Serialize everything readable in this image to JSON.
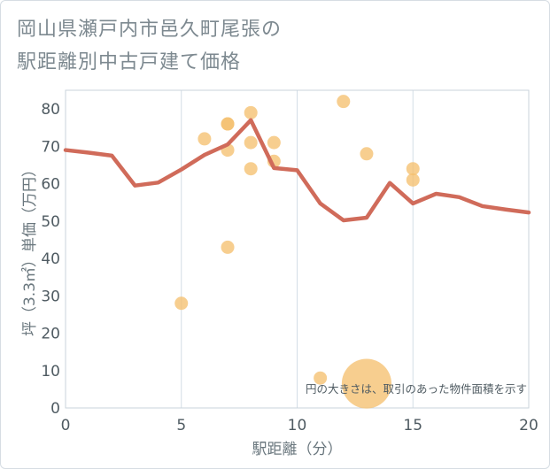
{
  "title_lines": [
    "岡山県瀬戸内市邑久町尾張の",
    "駅距離別中古戸建て価格"
  ],
  "chart_data": {
    "type": "scatter",
    "xlabel": "駅距離（分）",
    "ylabel": "坪（3.3㎡）単価（万円）",
    "xlim": [
      0,
      20
    ],
    "ylim": [
      0,
      85
    ],
    "xticks": [
      0,
      5,
      10,
      15,
      20
    ],
    "yticks": [
      0,
      10,
      20,
      30,
      40,
      50,
      60,
      70,
      80
    ],
    "grid": true,
    "note": "円の大きさは、取引のあった物件面積を示す",
    "colors": {
      "bubble": "#f5c06f",
      "line": "#d06b5a",
      "grid": "#d3dde6",
      "frame": "#c9d3db"
    },
    "scatter": [
      {
        "x": 5,
        "y": 28,
        "size": 1
      },
      {
        "x": 6,
        "y": 72,
        "size": 1
      },
      {
        "x": 7,
        "y": 76,
        "size": 1
      },
      {
        "x": 7,
        "y": 76,
        "size": 1
      },
      {
        "x": 7,
        "y": 69,
        "size": 1
      },
      {
        "x": 7,
        "y": 43,
        "size": 1
      },
      {
        "x": 8,
        "y": 79,
        "size": 1
      },
      {
        "x": 8,
        "y": 71,
        "size": 1
      },
      {
        "x": 8,
        "y": 64,
        "size": 1
      },
      {
        "x": 9,
        "y": 71,
        "size": 1
      },
      {
        "x": 9,
        "y": 66,
        "size": 1
      },
      {
        "x": 11,
        "y": 8,
        "size": 1
      },
      {
        "x": 12,
        "y": 82,
        "size": 1
      },
      {
        "x": 13,
        "y": 68,
        "size": 1
      },
      {
        "x": 13,
        "y": 6.5,
        "size": 14
      },
      {
        "x": 15,
        "y": 64,
        "size": 1
      },
      {
        "x": 15,
        "y": 61,
        "size": 1
      }
    ],
    "line": {
      "x": [
        0,
        1,
        2,
        3,
        4,
        5,
        6,
        7,
        8,
        9,
        10,
        11,
        12,
        13,
        14,
        15,
        16,
        17,
        18,
        19,
        20
      ],
      "y": [
        69,
        68.3,
        67.5,
        59.5,
        60.3,
        63.8,
        67.7,
        70.5,
        77,
        64.2,
        63.6,
        54.7,
        50.2,
        50.9,
        60.2,
        54.7,
        57.3,
        56.4,
        54,
        53.1,
        52.3
      ]
    }
  }
}
